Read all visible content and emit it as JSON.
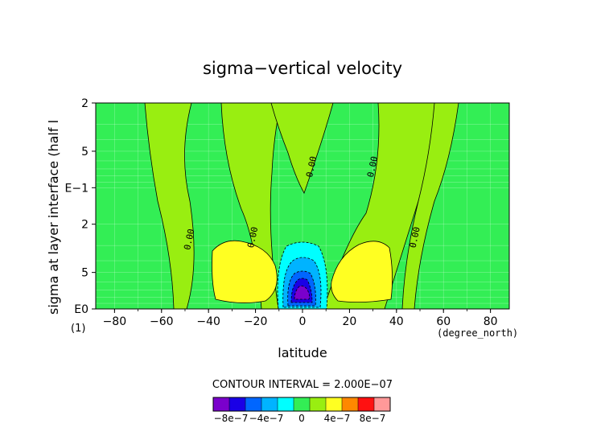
{
  "chart_data": {
    "type": "heatmap",
    "title": "sigma−vertical velocity",
    "xlabel": "latitude",
    "xunit_label": "(degree_north)",
    "ylabel": "sigma at layer interface (half l",
    "ylabel_suffix": "(1)",
    "x_ticks": [
      "−80",
      "−60",
      "−40",
      "−20",
      "0",
      "20",
      "40",
      "60",
      "80"
    ],
    "x_tick_values": [
      -80,
      -60,
      -40,
      -20,
      0,
      20,
      40,
      60,
      80
    ],
    "xlim": [
      -88,
      88
    ],
    "y_ticks": [
      "2",
      "5",
      "E−1",
      "2",
      "5",
      "E0"
    ],
    "y_tick_values": [
      0.02,
      0.05,
      0.1,
      0.2,
      0.5,
      1.0
    ],
    "ylim": [
      0.02,
      1.0
    ],
    "y_scale": "log",
    "grid": true,
    "contour_labels": [
      {
        "text": "0.00",
        "x": 5,
        "y": 0.068
      },
      {
        "text": "0.00",
        "x": 31,
        "y": 0.068
      },
      {
        "text": "0.00",
        "x": -47,
        "y": 0.27
      },
      {
        "text": "0.00",
        "x": -20,
        "y": 0.26
      },
      {
        "text": "0.00",
        "x": 49,
        "y": 0.26
      }
    ],
    "features": [
      {
        "kind": "min",
        "x": 0,
        "y": 0.78,
        "value": -9e-07
      },
      {
        "kind": "max",
        "x": -29,
        "y": 0.55,
        "value": 2.5e-07
      },
      {
        "kind": "max",
        "x": 29,
        "y": 0.55,
        "value": 2.5e-07
      }
    ],
    "contour_interval_text": "CONTOUR INTERVAL = 2.000E−07",
    "colorbar": {
      "levels": [
        -1e-06,
        -8e-07,
        -6e-07,
        -4e-07,
        -2e-07,
        0,
        2e-07,
        4e-07,
        6e-07,
        8e-07,
        1e-06
      ],
      "tick_labels": [
        "−8e−7",
        "−4e−7",
        "0",
        "4e−7",
        "8e−7"
      ],
      "tick_values": [
        -8e-07,
        -4e-07,
        0,
        4e-07,
        8e-07
      ],
      "colors": [
        "#7a00cc",
        "#1a00e6",
        "#0066ff",
        "#00b3ff",
        "#00ffff",
        "#33ee55",
        "#99ee11",
        "#ffff22",
        "#ff8800",
        "#ff1111",
        "#ff9999"
      ]
    }
  }
}
